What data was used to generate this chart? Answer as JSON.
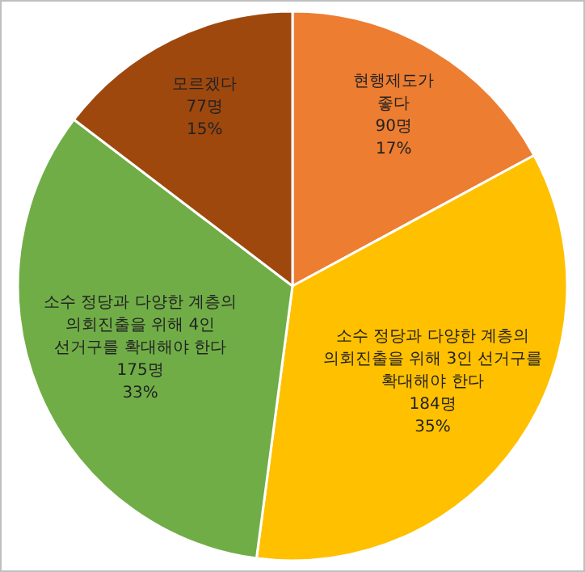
{
  "chart_data": {
    "type": "pie",
    "categories": [
      "현행제도가 좋다",
      "소수 정당과 다양한 계층의 의회진출을 위해 3인 선거구를 확대해야 한다",
      "소수 정당과 다양한 계층의 의회진출을 위해 4인 선거구를 확대해야 한다",
      "모르겠다"
    ],
    "values": [
      90,
      184,
      175,
      77
    ],
    "value_labels": [
      "90명\n17%",
      "184명\n35%",
      "175명\n33%",
      "77명\n15%"
    ],
    "colors": [
      "#ed7d31",
      "#ffc000",
      "#70ad47",
      "#9e480e"
    ]
  }
}
